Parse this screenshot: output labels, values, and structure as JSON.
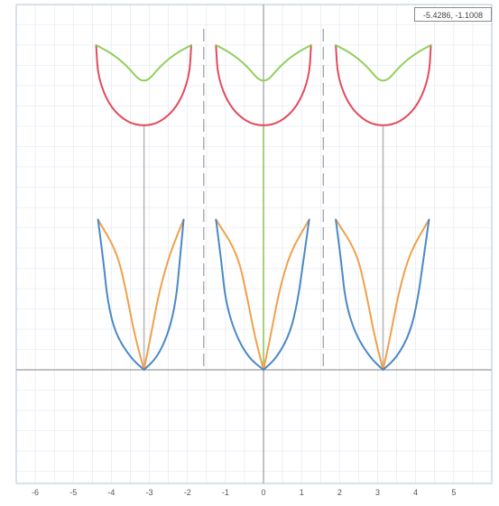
{
  "coordinate_readout": "-5.4286, -1.1008",
  "colors": {
    "grid": "#dde6f1",
    "axis": "#9a9a9a",
    "border": "#b3c4d8",
    "divider": "#9a9a9a",
    "leaf_outer": "#4a88c7",
    "leaf_inner": "#f0a04b",
    "petal_top": "#8fcf5a",
    "petal_bottom": "#e34a5a",
    "stem_center": "#8fcf5a",
    "stem_side": "#b8b8b8"
  },
  "chart_data": {
    "type": "line",
    "title": "",
    "xlabel": "",
    "ylabel": "",
    "xlim": [
      -6.5,
      6.0
    ],
    "ylim": [
      -2.8,
      9.0
    ],
    "x_ticks": [
      -6,
      -5,
      -4,
      -3,
      -2,
      -1,
      0,
      1,
      2,
      3,
      4,
      5
    ],
    "x_tick_labels": [
      "-6",
      "-5",
      "-4",
      "-3",
      "-2",
      "-1",
      "0",
      "1",
      "2",
      "3",
      "4",
      "5"
    ],
    "grid": true,
    "vertical_dividers": [
      -1.5708,
      1.5708
    ],
    "flowers": [
      {
        "cx": -3.1416,
        "stem_top": 6.0,
        "left_leaf_outer": [
          [
            -3.1416,
            0
          ],
          [
            -3.5,
            0.3
          ],
          [
            -3.9,
            0.9
          ],
          [
            -4.1,
            1.7
          ],
          [
            -4.2,
            2.6
          ],
          [
            -4.35,
            3.7
          ]
        ],
        "left_leaf_inner": [
          [
            -3.1416,
            0
          ],
          [
            -3.4,
            0.9
          ],
          [
            -3.6,
            1.9
          ],
          [
            -3.85,
            2.9
          ],
          [
            -4.35,
            3.7
          ]
        ],
        "right_leaf_outer": [
          [
            -3.1416,
            0
          ],
          [
            -2.8,
            0.3
          ],
          [
            -2.5,
            0.9
          ],
          [
            -2.3,
            1.7
          ],
          [
            -2.2,
            2.7
          ],
          [
            -2.1,
            3.7
          ]
        ],
        "right_leaf_inner": [
          [
            -3.1416,
            0
          ],
          [
            -2.95,
            0.9
          ],
          [
            -2.75,
            1.9
          ],
          [
            -2.45,
            2.9
          ],
          [
            -2.1,
            3.7
          ]
        ],
        "petal_bottom": [
          [
            -4.4,
            8.0
          ],
          [
            -4.35,
            7.2
          ],
          [
            -4.05,
            6.5
          ],
          [
            -3.6,
            6.1
          ],
          [
            -3.1416,
            6.0
          ],
          [
            -2.7,
            6.1
          ],
          [
            -2.25,
            6.5
          ],
          [
            -1.95,
            7.2
          ],
          [
            -1.9,
            8.0
          ]
        ],
        "petal_top": [
          [
            -4.4,
            8.0
          ],
          [
            -4.0,
            7.8
          ],
          [
            -3.6,
            7.5
          ],
          [
            -3.1416,
            7.0
          ],
          [
            -2.7,
            7.5
          ],
          [
            -2.3,
            7.8
          ],
          [
            -1.9,
            8.0
          ]
        ]
      },
      {
        "cx": 0,
        "stem_top": 6.0,
        "left_leaf_outer": [
          [
            0,
            0
          ],
          [
            -0.4,
            0.3
          ],
          [
            -0.75,
            0.9
          ],
          [
            -1.0,
            1.7
          ],
          [
            -1.1,
            2.6
          ],
          [
            -1.25,
            3.7
          ]
        ],
        "left_leaf_inner": [
          [
            0,
            0
          ],
          [
            -0.25,
            0.9
          ],
          [
            -0.45,
            1.9
          ],
          [
            -0.7,
            2.9
          ],
          [
            -1.25,
            3.7
          ]
        ],
        "right_leaf_outer": [
          [
            0,
            0
          ],
          [
            0.35,
            0.3
          ],
          [
            0.7,
            0.9
          ],
          [
            0.9,
            1.7
          ],
          [
            1.05,
            2.7
          ],
          [
            1.2,
            3.7
          ]
        ],
        "right_leaf_inner": [
          [
            0,
            0
          ],
          [
            0.2,
            0.9
          ],
          [
            0.4,
            1.9
          ],
          [
            0.7,
            2.9
          ],
          [
            1.2,
            3.7
          ]
        ],
        "petal_bottom": [
          [
            -1.25,
            8.0
          ],
          [
            -1.2,
            7.2
          ],
          [
            -0.9,
            6.5
          ],
          [
            -0.45,
            6.1
          ],
          [
            0,
            6.0
          ],
          [
            0.45,
            6.1
          ],
          [
            0.9,
            6.5
          ],
          [
            1.2,
            7.2
          ],
          [
            1.25,
            8.0
          ]
        ],
        "petal_top": [
          [
            -1.25,
            8.0
          ],
          [
            -0.85,
            7.8
          ],
          [
            -0.45,
            7.5
          ],
          [
            0,
            7.0
          ],
          [
            0.45,
            7.5
          ],
          [
            0.85,
            7.8
          ],
          [
            1.25,
            8.0
          ]
        ]
      },
      {
        "cx": 3.1416,
        "stem_top": 6.0,
        "left_leaf_outer": [
          [
            3.1416,
            0
          ],
          [
            2.8,
            0.3
          ],
          [
            2.4,
            0.9
          ],
          [
            2.15,
            1.7
          ],
          [
            2.05,
            2.6
          ],
          [
            1.9,
            3.7
          ]
        ],
        "left_leaf_inner": [
          [
            3.1416,
            0
          ],
          [
            2.9,
            0.9
          ],
          [
            2.7,
            1.9
          ],
          [
            2.45,
            2.9
          ],
          [
            1.9,
            3.7
          ]
        ],
        "right_leaf_outer": [
          [
            3.1416,
            0
          ],
          [
            3.5,
            0.3
          ],
          [
            3.85,
            0.9
          ],
          [
            4.05,
            1.7
          ],
          [
            4.2,
            2.7
          ],
          [
            4.35,
            3.7
          ]
        ],
        "right_leaf_inner": [
          [
            3.1416,
            0
          ],
          [
            3.35,
            0.9
          ],
          [
            3.55,
            1.9
          ],
          [
            3.85,
            2.9
          ],
          [
            4.35,
            3.7
          ]
        ],
        "petal_bottom": [
          [
            1.9,
            8.0
          ],
          [
            1.95,
            7.2
          ],
          [
            2.25,
            6.5
          ],
          [
            2.7,
            6.1
          ],
          [
            3.1416,
            6.0
          ],
          [
            3.6,
            6.1
          ],
          [
            4.05,
            6.5
          ],
          [
            4.35,
            7.2
          ],
          [
            4.4,
            8.0
          ]
        ],
        "petal_top": [
          [
            1.9,
            8.0
          ],
          [
            2.3,
            7.8
          ],
          [
            2.7,
            7.5
          ],
          [
            3.1416,
            7.0
          ],
          [
            3.6,
            7.5
          ],
          [
            4.0,
            7.8
          ],
          [
            4.4,
            8.0
          ]
        ]
      }
    ]
  }
}
